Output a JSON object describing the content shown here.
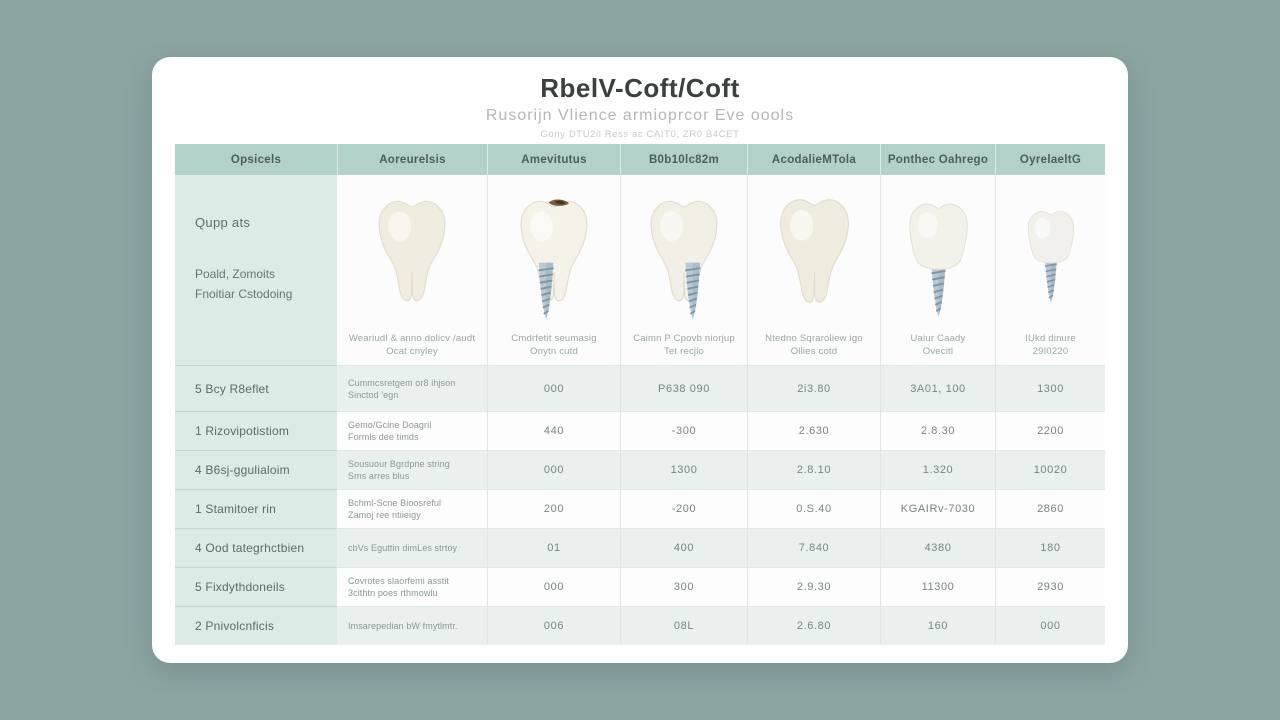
{
  "colors": {
    "page_bg": "#8ba5a3",
    "card_bg": "#ffffff",
    "header_cell": "#b2d1c8",
    "sidebar_cell": "#dcebe5",
    "row_shade": "#e9f0ed",
    "implant_metal": "#b9c8d4",
    "tooth_cream": "#f0ecdf"
  },
  "header": {
    "title": "RbelV-Coft/Coft",
    "subtitle": "Rusorijn Vlience armioprcor Eve oools",
    "tagline": "Gony DTU2il Ress ac CAIT0, ZR0 B4CET"
  },
  "chart_data": {
    "type": "table",
    "title": "RbelV-Coft/Coft",
    "columns": [
      "Opsicels",
      "Aoreurelsis",
      "Amevitutus",
      "B0b10lc82m",
      "AcodalieMTola",
      "Ponthec Oahrego",
      "OyrelaeltG"
    ],
    "sidebar_intro": [
      "Qupp ats",
      "Poald, Zomoits",
      "Fnoitiar Cstodoing"
    ],
    "products": [
      {
        "icon": "tooth-molar",
        "fill": "#f0ecdf",
        "caption": [
          "Weariudl & anno dolicv /audt",
          "Ocat cnyley"
        ]
      },
      {
        "icon": "tooth-molar-cavity-implant-left",
        "fill": "#f5f2ea",
        "caption": [
          "Cmdrfetit seumasig",
          "Onytn cutd"
        ]
      },
      {
        "icon": "tooth-molar-implant-right",
        "fill": "#f2efe6",
        "caption": [
          "Caimn P Cpovb niorjup",
          "Tet recjlo"
        ]
      },
      {
        "icon": "tooth-molar",
        "fill": "#efecdf",
        "caption": [
          "Ntedno Sqraroliew igo",
          "Ollies cotd"
        ]
      },
      {
        "icon": "tooth-crown-implant",
        "fill": "#f2f1ea",
        "caption": [
          "Uaiur Caady",
          "Ovecitl"
        ]
      },
      {
        "icon": "tooth-crown-implant-small",
        "fill": "#f1f0ea",
        "caption": [
          "IUkd dinure",
          "29I0220"
        ]
      }
    ],
    "rows": [
      {
        "label": "5 Bcy R8eflet",
        "desc": [
          "Cummcsretgem or8 ihjson",
          "Sinctod 'egn"
        ],
        "values": [
          "000",
          "P638 090",
          "2i3.80",
          "3A01, 100",
          "1300"
        ]
      },
      {
        "label": "1 Rizovipotistiom",
        "desc": [
          "Gemo/Gcine Doagril",
          "Formls dee timds"
        ],
        "values": [
          "440",
          "-300",
          "2.630",
          "2.8.30",
          "2200"
        ]
      },
      {
        "label": "4 B6sj-ggulialoim",
        "desc": [
          "Sousuour Bgrdpne string",
          "Sms arres blus"
        ],
        "values": [
          "000",
          "1300",
          "2.8.10",
          "1.320",
          "10020"
        ]
      },
      {
        "label": "1 Stamitoer rin",
        "desc": [
          "Bchml-Scne Bioosreful",
          "Zamoj ree ntiieigy"
        ],
        "values": [
          "200",
          "-200",
          "0.S.40",
          "KGAIRv-7030",
          "2860"
        ]
      },
      {
        "label": "4 Ood tategrhctbien",
        "desc": [
          "cbVs Eguttin dimLes strtoy",
          ""
        ],
        "values": [
          "01",
          "400",
          "7.840",
          "4380",
          "180"
        ]
      },
      {
        "label": "5 Fixdythdoneils",
        "desc": [
          "Covrotes slaorfemi asstit",
          "3cithtn poes rthmowlu"
        ],
        "values": [
          "000",
          "300",
          "2.9.30",
          "11300",
          "2930"
        ]
      },
      {
        "label": "2 Pnivolcnficis",
        "desc": [
          "Imsarepedian bW fmytlmtr.",
          ""
        ],
        "values": [
          "006",
          "08L",
          "2.6.80",
          "160",
          "000"
        ]
      }
    ]
  }
}
